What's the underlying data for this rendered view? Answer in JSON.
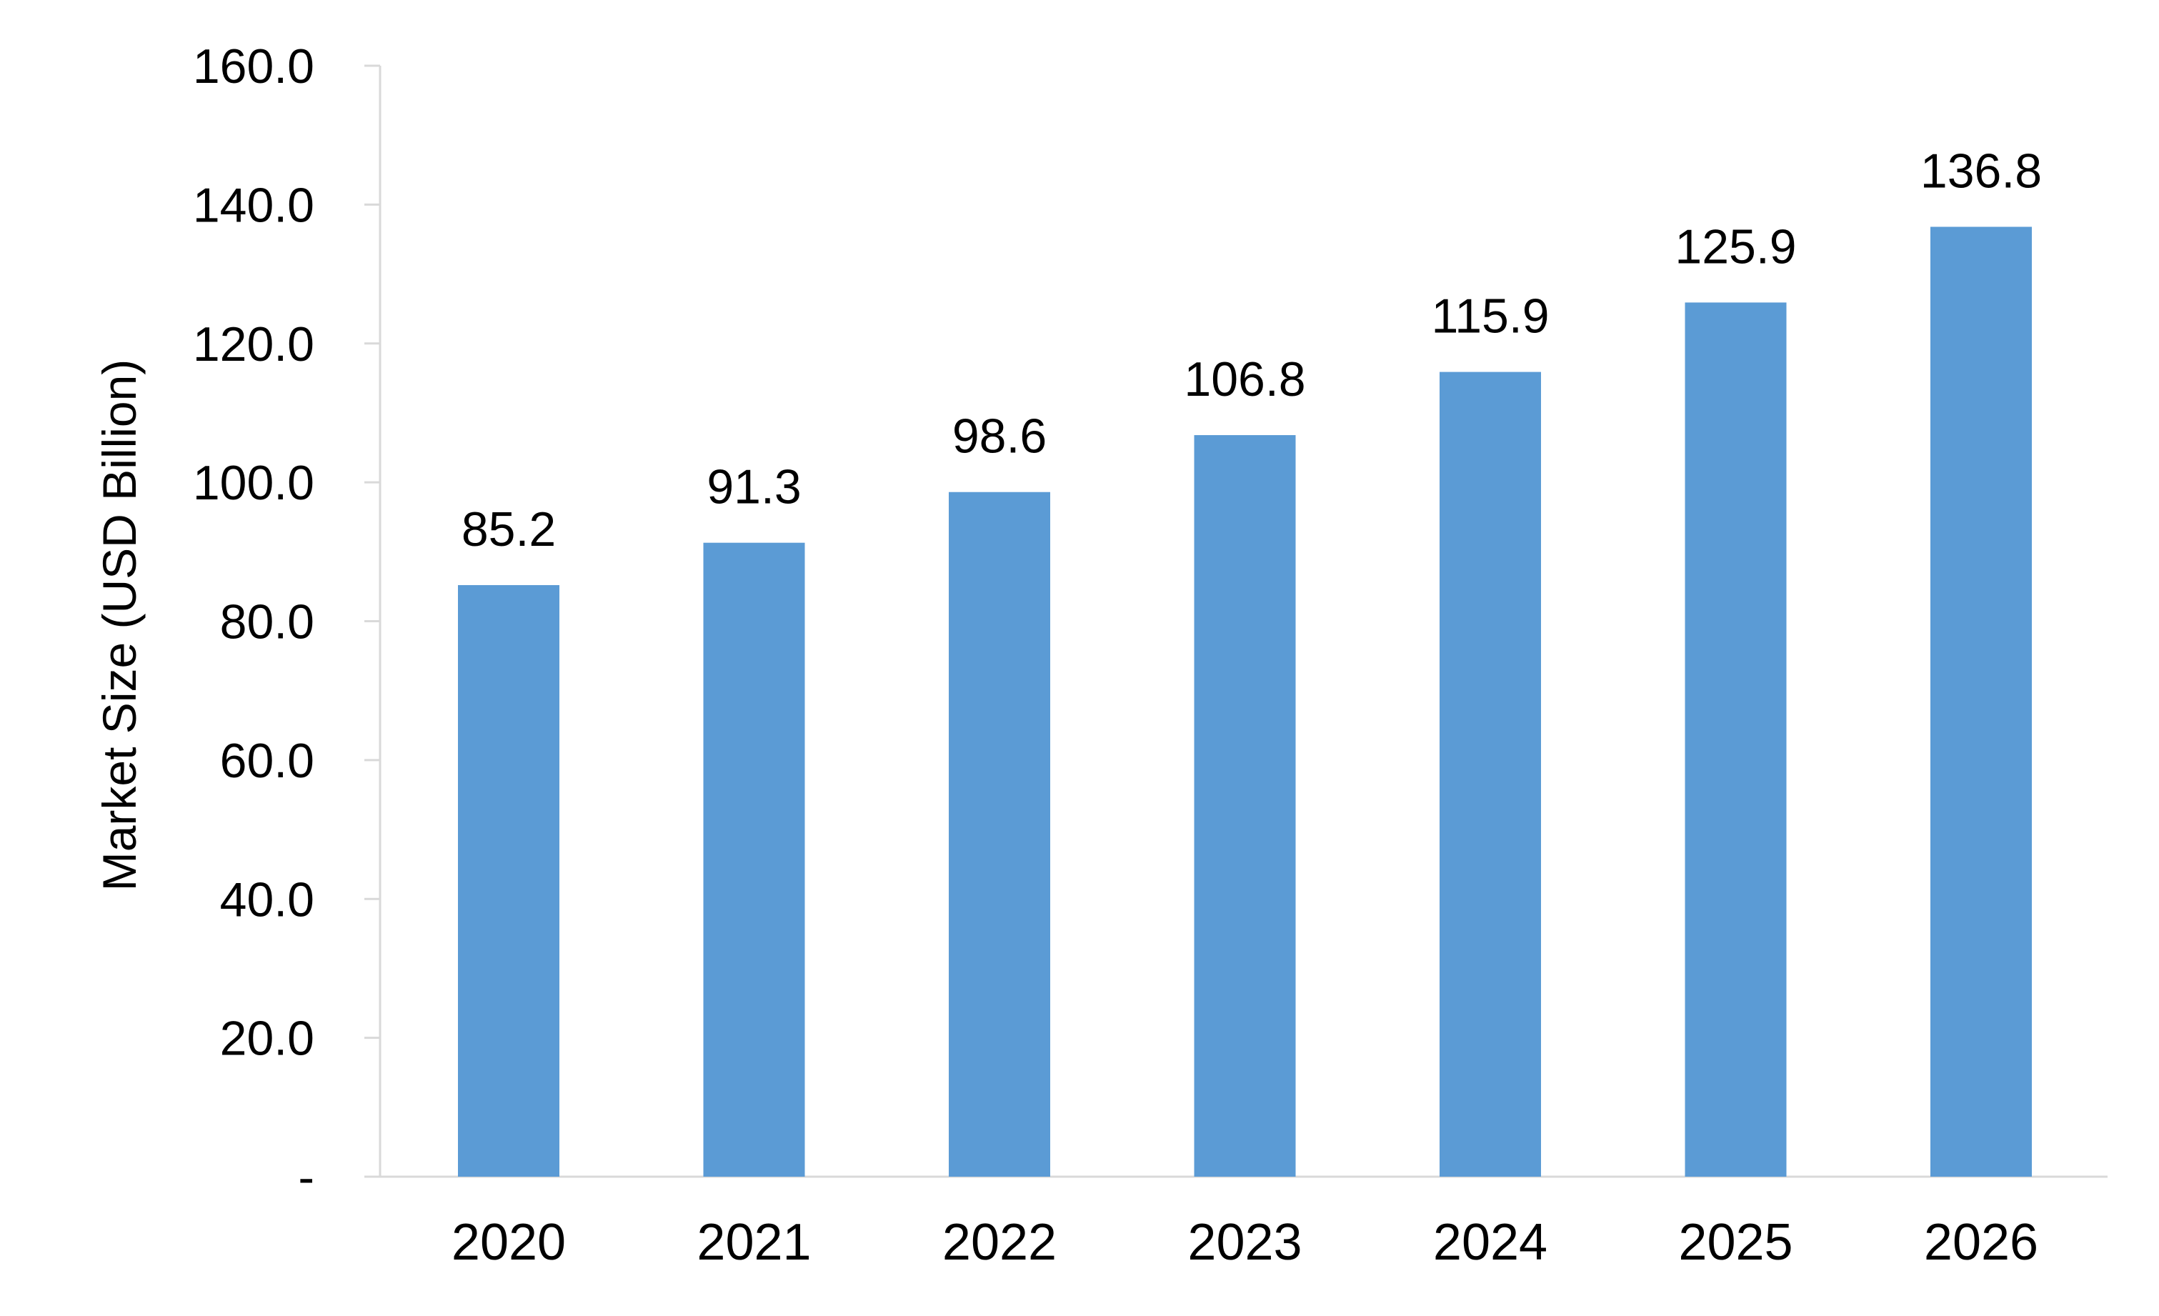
{
  "chart_data": {
    "type": "bar",
    "title": "",
    "xlabel": "",
    "ylabel": "Market Size (USD Billion)",
    "categories": [
      "2020",
      "2021",
      "2022",
      "2023",
      "2024",
      "2025",
      "2026"
    ],
    "values": [
      85.2,
      91.3,
      98.6,
      106.8,
      115.9,
      125.9,
      136.8
    ],
    "data_labels": [
      "85.2",
      "91.3",
      "98.6",
      "106.8",
      "115.9",
      "125.9",
      "136.8"
    ],
    "ylim": [
      0,
      160
    ],
    "y_ticks": [
      0,
      20,
      40,
      60,
      80,
      100,
      120,
      140,
      160
    ],
    "y_tick_labels": [
      "-",
      "20.0",
      "40.0",
      "60.0",
      "80.0",
      "100.0",
      "120.0",
      "140.0",
      "160.0"
    ],
    "grid": false,
    "legend": "none",
    "colors": {
      "bar": "#5B9BD5",
      "axis": "#D9D9D9",
      "text": "#000000"
    }
  }
}
